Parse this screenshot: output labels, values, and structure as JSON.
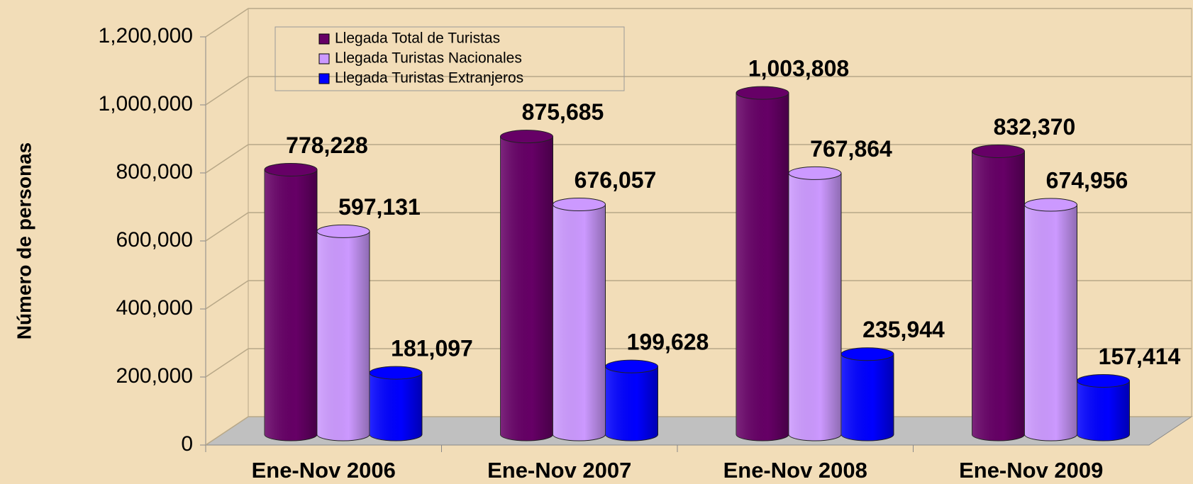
{
  "chart_data": {
    "type": "bar3d",
    "ylabel": "Número de personas",
    "categories": [
      "Ene-Nov 2006",
      "Ene-Nov 2007",
      "Ene-Nov 2008",
      "Ene-Nov 2009"
    ],
    "series": [
      {
        "name": "Llegada Total de Turistas",
        "color": "#660066",
        "values": [
          778228,
          875685,
          1003808,
          832370
        ],
        "value_labels": [
          "778,228",
          "875,685",
          "1,003,808",
          "832,370"
        ]
      },
      {
        "name": "Llegada Turistas Nacionales",
        "color": "#cc99ff",
        "values": [
          597131,
          676057,
          767864,
          674956
        ],
        "value_labels": [
          "597,131",
          "676,057",
          "767,864",
          "674,956"
        ]
      },
      {
        "name": "Llegada Turistas Extranjeros",
        "color": "#0000ff",
        "values": [
          181097,
          199628,
          235944,
          157414
        ],
        "value_labels": [
          "181,097",
          "199,628",
          "235,944",
          "157,414"
        ]
      }
    ],
    "ylim": [
      0,
      1200000
    ],
    "yticks": [
      0,
      {
        "value": 200000,
        "label": "200,000"
      },
      {
        "value": 400000,
        "label": "400,000"
      },
      {
        "value": 600000,
        "label": "600,000"
      },
      {
        "value": 800000,
        "label": "800,000"
      },
      {
        "value": 1000000,
        "label": "1,000,000"
      },
      {
        "value": 1200000,
        "label": "1,200,000"
      }
    ],
    "grid": true,
    "legend": "top-left"
  }
}
